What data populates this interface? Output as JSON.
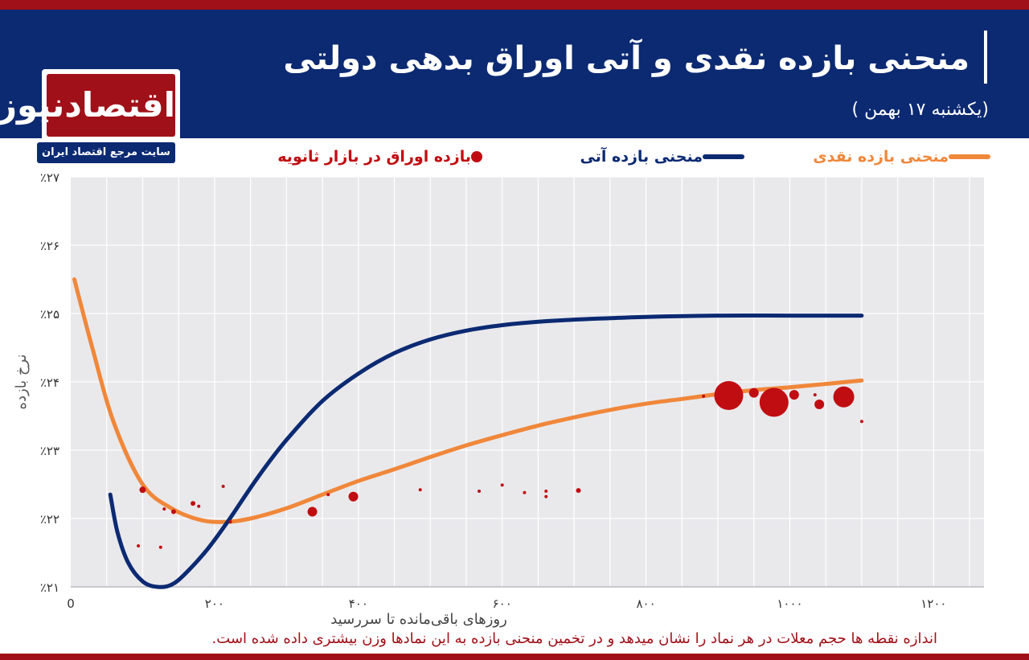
{
  "header": {
    "title": "منحنی بازده نقدی و آتی اوراق بدهی دولتی",
    "subtitle": "(یکشنبه ۱۷ بهمن )"
  },
  "logo": {
    "name": "اقتصادنیوز",
    "tagline": "سایت مرجع اقتصاد ایران"
  },
  "legend": [
    {
      "label": "منحنی بازده نقدی",
      "color": "#f0873a",
      "kind": "line"
    },
    {
      "label": "منحنی بازده آتی",
      "color": "#0c2a72",
      "kind": "line"
    },
    {
      "label": "بازده اوراق در بازار ثانویه",
      "color": "#c00d12",
      "kind": "dot"
    }
  ],
  "footnote": "اندازه نقطه ها حجم معلات در هر نماد را نشان میدهد و در تخمین منحنی بازده به این نمادها وزن بیشتری داده شده است.",
  "chart_data": {
    "type": "line",
    "xlabel": "روزهای باقی‌مانده تا سررسید",
    "ylabel": "نرخ بازده",
    "xlim": [
      0,
      1270
    ],
    "ylim": [
      21,
      27
    ],
    "xticks": [
      0,
      200,
      400,
      600,
      800,
      1000,
      1200
    ],
    "xtick_labels": [
      "0",
      "۲۰۰",
      "۴۰۰",
      "۶۰۰",
      "۸۰۰",
      "۱۰۰۰",
      "۱۲۰۰"
    ],
    "yticks": [
      21,
      22,
      23,
      24,
      25,
      26,
      27
    ],
    "ytick_labels": [
      "٪۲۱",
      "٪۲۲",
      "٪۲۳",
      "٪۲۴",
      "٪۲۵",
      "٪۲۶",
      "٪۲۷"
    ],
    "grid": true,
    "legend_position": "top",
    "series": [
      {
        "name": "منحنی بازده نقدی",
        "color": "#f0873a",
        "x": [
          5,
          30,
          60,
          100,
          140,
          180,
          215,
          250,
          300,
          350,
          400,
          450,
          500,
          550,
          600,
          650,
          700,
          750,
          800,
          850,
          900,
          950,
          1000,
          1050,
          1100
        ],
        "y": [
          25.5,
          24.5,
          23.4,
          22.5,
          22.15,
          21.98,
          21.95,
          22.0,
          22.15,
          22.35,
          22.55,
          22.72,
          22.9,
          23.07,
          23.22,
          23.36,
          23.48,
          23.59,
          23.68,
          23.75,
          23.82,
          23.88,
          23.92,
          23.97,
          24.02
        ]
      },
      {
        "name": "منحنی بازده آتی",
        "color": "#0c2a72",
        "x": [
          55,
          65,
          80,
          100,
          120,
          140,
          160,
          190,
          220,
          260,
          300,
          350,
          400,
          450,
          500,
          550,
          600,
          650,
          700,
          800,
          900,
          1000,
          1100
        ],
        "y": [
          22.35,
          21.8,
          21.35,
          21.08,
          21.0,
          21.03,
          21.2,
          21.55,
          21.98,
          22.6,
          23.15,
          23.72,
          24.12,
          24.42,
          24.62,
          24.75,
          24.83,
          24.88,
          24.91,
          24.95,
          24.97,
          24.97,
          24.97
        ]
      }
    ],
    "points": {
      "name": "بازده اوراق در بازار ثانویه",
      "color": "#c00d12",
      "data": [
        {
          "x": 100,
          "y": 22.42,
          "size": 4
        },
        {
          "x": 94,
          "y": 21.6,
          "size": 2
        },
        {
          "x": 125,
          "y": 21.58,
          "size": 2
        },
        {
          "x": 130,
          "y": 22.14,
          "size": 2
        },
        {
          "x": 143,
          "y": 22.1,
          "size": 3
        },
        {
          "x": 170,
          "y": 22.22,
          "size": 3
        },
        {
          "x": 178,
          "y": 22.18,
          "size": 2
        },
        {
          "x": 212,
          "y": 22.47,
          "size": 2
        },
        {
          "x": 222,
          "y": 21.95,
          "size": 2
        },
        {
          "x": 336,
          "y": 22.1,
          "size": 6
        },
        {
          "x": 358,
          "y": 22.35,
          "size": 2
        },
        {
          "x": 393,
          "y": 22.32,
          "size": 6
        },
        {
          "x": 486,
          "y": 22.42,
          "size": 2
        },
        {
          "x": 568,
          "y": 22.4,
          "size": 2
        },
        {
          "x": 600,
          "y": 22.49,
          "size": 2
        },
        {
          "x": 631,
          "y": 22.38,
          "size": 2
        },
        {
          "x": 661,
          "y": 22.4,
          "size": 2
        },
        {
          "x": 661,
          "y": 22.32,
          "size": 2
        },
        {
          "x": 706,
          "y": 22.41,
          "size": 3
        },
        {
          "x": 880,
          "y": 23.79,
          "size": 2
        },
        {
          "x": 915,
          "y": 23.8,
          "size": 18
        },
        {
          "x": 950,
          "y": 23.84,
          "size": 6
        },
        {
          "x": 978,
          "y": 23.7,
          "size": 18
        },
        {
          "x": 1006,
          "y": 23.81,
          "size": 6
        },
        {
          "x": 1035,
          "y": 23.81,
          "size": 2
        },
        {
          "x": 1041,
          "y": 23.67,
          "size": 6
        },
        {
          "x": 1075,
          "y": 23.78,
          "size": 13
        },
        {
          "x": 1100,
          "y": 23.42,
          "size": 2
        }
      ]
    }
  }
}
